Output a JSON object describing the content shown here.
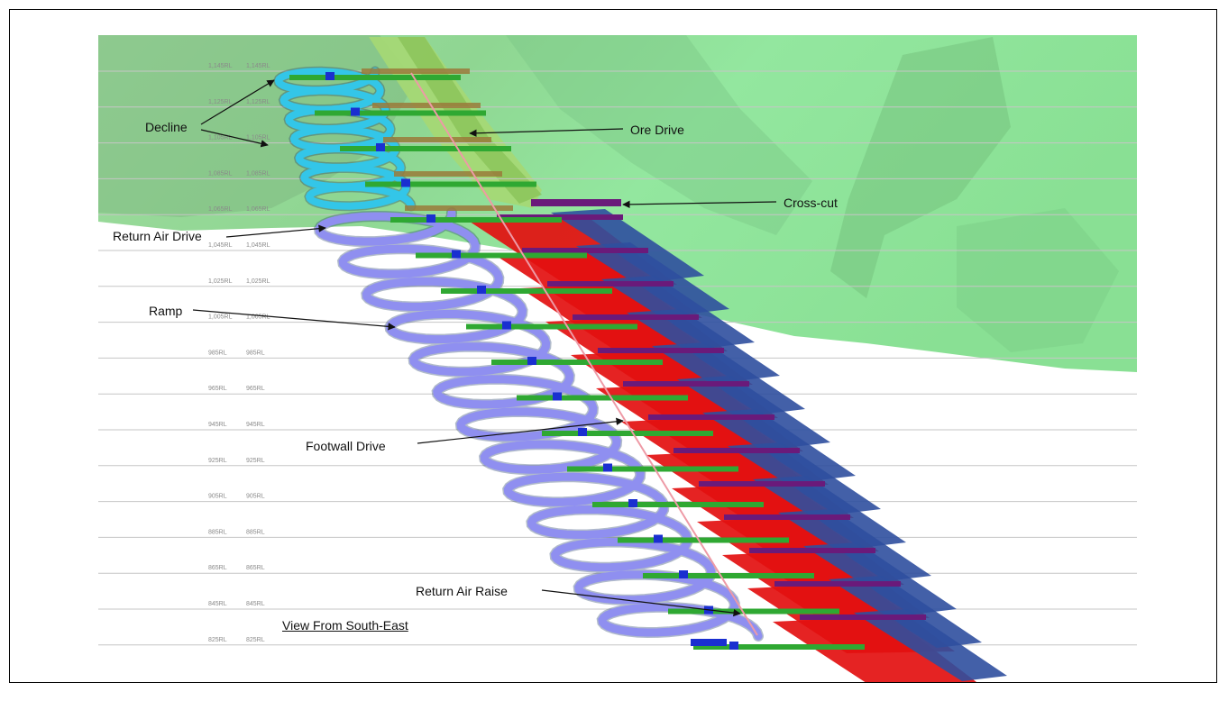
{
  "diagram": {
    "caption": "View From South-East",
    "labels": {
      "decline": "Decline",
      "ore_drive": "Ore Drive",
      "cross_cut": "Cross-cut",
      "return_air_drive": "Return Air Drive",
      "ramp": "Ramp",
      "footwall_drive": "Footwall Drive",
      "return_air_raise": "Return Air Raise"
    },
    "level_labels": [
      "1,145RL",
      "1,125RL",
      "1,105RL",
      "1,085RL",
      "1,065RL",
      "1,045RL",
      "1,025RL",
      "1,005RL",
      "985RL",
      "965RL",
      "945RL",
      "925RL",
      "905RL",
      "885RL",
      "865RL",
      "845RL",
      "825RL"
    ]
  },
  "colors": {
    "surface": "#8ee89a",
    "decline": "#33c6e8",
    "ramp": "#8f8ff0",
    "ore_drive": "#e31010",
    "cross_cut": "#2f4f9f",
    "footwall": "#2fa832",
    "raise": "#ee9aa6",
    "purple": "#6a1a7a"
  }
}
